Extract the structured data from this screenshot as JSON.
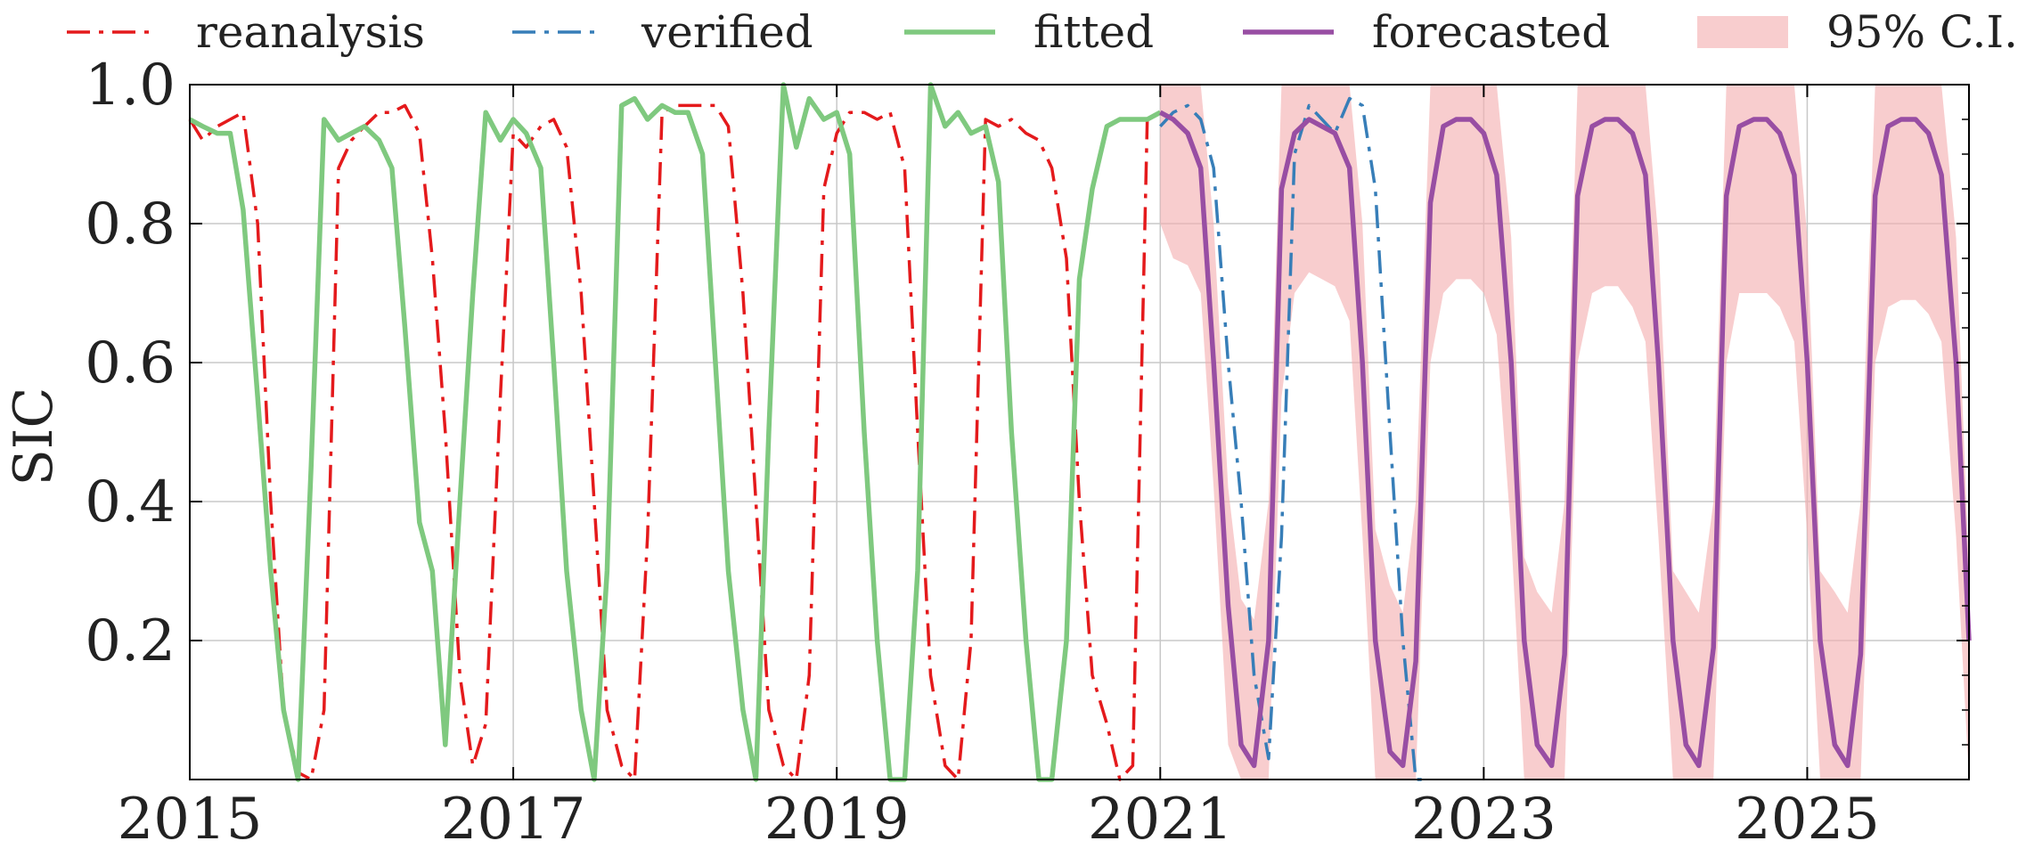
{
  "chart_data": {
    "type": "line",
    "title": "",
    "xlabel": "",
    "ylabel": "SIC",
    "xlim": [
      2015.0,
      2026.0
    ],
    "ylim": [
      0.0,
      1.0
    ],
    "grid": true,
    "legend_position": "top",
    "x_ticks": [
      2015,
      2017,
      2019,
      2021,
      2023,
      2025
    ],
    "x_tick_labels": [
      "2015",
      "2017",
      "2019",
      "2021",
      "2023",
      "2025"
    ],
    "y_ticks": [
      0.2,
      0.4,
      0.6,
      0.8,
      1.0
    ],
    "y_tick_labels": [
      "0.2",
      "0.4",
      "0.6",
      "0.8",
      "1.0"
    ],
    "legend": [
      {
        "label": "reanalysis",
        "style": "dashdot",
        "color": "#e41a1c"
      },
      {
        "label": "verified",
        "style": "dashdot",
        "color": "#377eb8"
      },
      {
        "label": "fitted",
        "style": "solid",
        "color": "#7fc97f"
      },
      {
        "label": "forecasted",
        "style": "solid",
        "color": "#984ea3"
      },
      {
        "label": "95% C.I.",
        "style": "fill",
        "color": "#f4aeb0"
      }
    ],
    "series": [
      {
        "name": "reanalysis",
        "color": "#e41a1c",
        "x": [
          2015.0,
          2015.08,
          2015.17,
          2015.25,
          2015.33,
          2015.42,
          2015.5,
          2015.58,
          2015.67,
          2015.75,
          2015.83,
          2015.92,
          2016.0,
          2016.08,
          2016.17,
          2016.25,
          2016.33,
          2016.42,
          2016.5,
          2016.58,
          2016.67,
          2016.75,
          2016.83,
          2016.92,
          2017.0,
          2017.08,
          2017.17,
          2017.25,
          2017.33,
          2017.42,
          2017.5,
          2017.58,
          2017.67,
          2017.75,
          2017.83,
          2017.92,
          2018.0,
          2018.08,
          2018.17,
          2018.25,
          2018.33,
          2018.42,
          2018.5,
          2018.58,
          2018.67,
          2018.75,
          2018.83,
          2018.92,
          2019.0,
          2019.08,
          2019.17,
          2019.25,
          2019.33,
          2019.42,
          2019.5,
          2019.58,
          2019.67,
          2019.75,
          2019.83,
          2019.92,
          2020.0,
          2020.08,
          2020.17,
          2020.25,
          2020.33,
          2020.42,
          2020.5,
          2020.58,
          2020.67,
          2020.75,
          2020.83,
          2020.92,
          2021.0
        ],
        "values": [
          0.95,
          0.92,
          0.94,
          0.95,
          0.96,
          0.8,
          0.4,
          0.1,
          0.01,
          0.0,
          0.1,
          0.88,
          0.92,
          0.94,
          0.96,
          0.96,
          0.97,
          0.93,
          0.75,
          0.5,
          0.15,
          0.02,
          0.08,
          0.55,
          0.93,
          0.91,
          0.94,
          0.95,
          0.91,
          0.7,
          0.4,
          0.1,
          0.02,
          0.0,
          0.35,
          0.96,
          0.97,
          0.97,
          0.97,
          0.97,
          0.94,
          0.7,
          0.4,
          0.1,
          0.02,
          0.0,
          0.15,
          0.85,
          0.93,
          0.96,
          0.96,
          0.95,
          0.96,
          0.88,
          0.5,
          0.15,
          0.02,
          0.0,
          0.2,
          0.95,
          0.94,
          0.95,
          0.93,
          0.92,
          0.88,
          0.75,
          0.4,
          0.15,
          0.08,
          0.0,
          0.02,
          0.95,
          0.96
        ]
      },
      {
        "name": "verified",
        "color": "#377eb8",
        "x": [
          2021.0,
          2021.08,
          2021.17,
          2021.25,
          2021.33,
          2021.42,
          2021.5,
          2021.58,
          2021.67,
          2021.75,
          2021.83,
          2021.92,
          2022.0,
          2022.08,
          2022.17,
          2022.25,
          2022.33,
          2022.42,
          2022.5,
          2022.58,
          2022.67
        ],
        "values": [
          0.94,
          0.96,
          0.97,
          0.95,
          0.88,
          0.6,
          0.4,
          0.15,
          0.03,
          0.35,
          0.9,
          0.97,
          0.95,
          0.93,
          0.98,
          0.97,
          0.85,
          0.5,
          0.2,
          0.0,
          0.0
        ]
      },
      {
        "name": "fitted",
        "color": "#7fc97f",
        "x": [
          2015.0,
          2015.08,
          2015.17,
          2015.25,
          2015.33,
          2015.42,
          2015.5,
          2015.58,
          2015.67,
          2015.75,
          2015.83,
          2015.92,
          2016.0,
          2016.08,
          2016.17,
          2016.25,
          2016.33,
          2016.42,
          2016.5,
          2016.58,
          2016.67,
          2016.75,
          2016.83,
          2016.92,
          2017.0,
          2017.08,
          2017.17,
          2017.25,
          2017.33,
          2017.42,
          2017.5,
          2017.58,
          2017.67,
          2017.75,
          2017.83,
          2017.92,
          2018.0,
          2018.08,
          2018.17,
          2018.25,
          2018.33,
          2018.42,
          2018.5,
          2018.58,
          2018.67,
          2018.75,
          2018.83,
          2018.92,
          2019.0,
          2019.08,
          2019.17,
          2019.25,
          2019.33,
          2019.42,
          2019.5,
          2019.58,
          2019.67,
          2019.75,
          2019.83,
          2019.92,
          2020.0,
          2020.08,
          2020.17,
          2020.25,
          2020.33,
          2020.42,
          2020.5,
          2020.58,
          2020.67,
          2020.75,
          2020.83,
          2020.92,
          2021.0
        ],
        "values": [
          0.95,
          0.94,
          0.93,
          0.93,
          0.82,
          0.55,
          0.3,
          0.1,
          0.0,
          0.45,
          0.95,
          0.92,
          0.93,
          0.94,
          0.92,
          0.88,
          0.65,
          0.37,
          0.3,
          0.05,
          0.4,
          0.7,
          0.96,
          0.92,
          0.95,
          0.93,
          0.88,
          0.6,
          0.3,
          0.1,
          0.0,
          0.3,
          0.97,
          0.98,
          0.95,
          0.97,
          0.96,
          0.96,
          0.9,
          0.6,
          0.3,
          0.1,
          0.0,
          0.5,
          1.0,
          0.91,
          0.98,
          0.95,
          0.96,
          0.9,
          0.5,
          0.2,
          0.0,
          0.0,
          0.3,
          1.0,
          0.94,
          0.96,
          0.93,
          0.94,
          0.86,
          0.5,
          0.2,
          0.0,
          0.0,
          0.2,
          0.72,
          0.85,
          0.94,
          0.95,
          0.95,
          0.95,
          0.96
        ]
      },
      {
        "name": "forecasted",
        "color": "#984ea3",
        "x": [
          2021.0,
          2021.08,
          2021.17,
          2021.25,
          2021.33,
          2021.42,
          2021.5,
          2021.58,
          2021.67,
          2021.75,
          2021.83,
          2021.92,
          2022.0,
          2022.08,
          2022.17,
          2022.25,
          2022.33,
          2022.42,
          2022.5,
          2022.58,
          2022.67,
          2022.75,
          2022.83,
          2022.92,
          2023.0,
          2023.08,
          2023.17,
          2023.25,
          2023.33,
          2023.42,
          2023.5,
          2023.58,
          2023.67,
          2023.75,
          2023.83,
          2023.92,
          2024.0,
          2024.08,
          2024.17,
          2024.25,
          2024.33,
          2024.42,
          2024.5,
          2024.58,
          2024.67,
          2024.75,
          2024.83,
          2024.92,
          2025.0,
          2025.08,
          2025.17,
          2025.25,
          2025.33,
          2025.42,
          2025.5,
          2025.58,
          2025.67,
          2025.75,
          2025.83,
          2025.92,
          2026.0
        ],
        "values": [
          0.96,
          0.95,
          0.93,
          0.88,
          0.6,
          0.25,
          0.05,
          0.02,
          0.2,
          0.85,
          0.93,
          0.95,
          0.94,
          0.93,
          0.88,
          0.6,
          0.2,
          0.04,
          0.02,
          0.17,
          0.83,
          0.94,
          0.95,
          0.95,
          0.93,
          0.87,
          0.6,
          0.2,
          0.05,
          0.02,
          0.18,
          0.84,
          0.94,
          0.95,
          0.95,
          0.93,
          0.87,
          0.6,
          0.2,
          0.05,
          0.02,
          0.19,
          0.84,
          0.94,
          0.95,
          0.95,
          0.93,
          0.87,
          0.6,
          0.2,
          0.05,
          0.02,
          0.18,
          0.84,
          0.94,
          0.95,
          0.95,
          0.93,
          0.87,
          0.6,
          0.2
        ]
      }
    ],
    "confidence_band": {
      "name": "95% C.I.",
      "color": "#f4aeb0",
      "x": [
        2021.0,
        2021.08,
        2021.17,
        2021.25,
        2021.33,
        2021.42,
        2021.5,
        2021.58,
        2021.67,
        2021.75,
        2021.83,
        2021.92,
        2022.0,
        2022.08,
        2022.17,
        2022.25,
        2022.33,
        2022.42,
        2022.5,
        2022.58,
        2022.67,
        2022.75,
        2022.83,
        2022.92,
        2023.0,
        2023.08,
        2023.17,
        2023.25,
        2023.33,
        2023.42,
        2023.5,
        2023.58,
        2023.67,
        2023.75,
        2023.83,
        2023.92,
        2024.0,
        2024.08,
        2024.17,
        2024.25,
        2024.33,
        2024.42,
        2024.5,
        2024.58,
        2024.67,
        2024.75,
        2024.83,
        2024.92,
        2025.0,
        2025.08,
        2025.17,
        2025.25,
        2025.33,
        2025.42,
        2025.5,
        2025.58,
        2025.67,
        2025.75,
        2025.83,
        2025.92,
        2026.0
      ],
      "lower": [
        0.8,
        0.75,
        0.74,
        0.7,
        0.42,
        0.05,
        0.0,
        0.0,
        0.0,
        0.55,
        0.7,
        0.73,
        0.72,
        0.71,
        0.66,
        0.35,
        0.0,
        0.0,
        0.0,
        0.0,
        0.6,
        0.7,
        0.72,
        0.72,
        0.7,
        0.64,
        0.35,
        0.0,
        0.0,
        0.0,
        0.0,
        0.6,
        0.7,
        0.71,
        0.71,
        0.68,
        0.63,
        0.35,
        0.0,
        0.0,
        0.0,
        0.0,
        0.6,
        0.7,
        0.7,
        0.7,
        0.68,
        0.63,
        0.35,
        0.0,
        0.0,
        0.0,
        0.0,
        0.6,
        0.68,
        0.69,
        0.69,
        0.67,
        0.63,
        0.35,
        0.0
      ],
      "upper": [
        1.0,
        1.0,
        1.0,
        1.0,
        0.8,
        0.42,
        0.26,
        0.23,
        0.4,
        1.0,
        1.0,
        1.0,
        1.0,
        1.0,
        1.0,
        0.8,
        0.36,
        0.28,
        0.24,
        0.4,
        1.0,
        1.0,
        1.0,
        1.0,
        1.0,
        1.0,
        0.78,
        0.32,
        0.27,
        0.24,
        0.4,
        1.0,
        1.0,
        1.0,
        1.0,
        1.0,
        1.0,
        0.78,
        0.3,
        0.27,
        0.24,
        0.4,
        1.0,
        1.0,
        1.0,
        1.0,
        1.0,
        1.0,
        0.78,
        0.3,
        0.27,
        0.24,
        0.4,
        1.0,
        1.0,
        1.0,
        1.0,
        1.0,
        1.0,
        0.78,
        0.3
      ]
    }
  }
}
